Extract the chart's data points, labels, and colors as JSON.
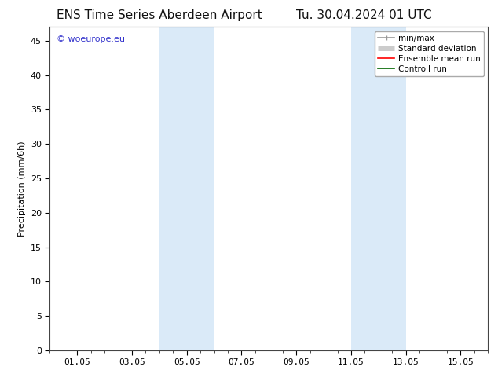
{
  "title_left": "ENS Time Series Aberdeen Airport",
  "title_right": "Tu. 30.04.2024 01 UTC",
  "ylabel": "Precipitation (mm/6h)",
  "ylim": [
    0,
    47
  ],
  "yticks": [
    0,
    5,
    10,
    15,
    20,
    25,
    30,
    35,
    40,
    45
  ],
  "xlim": [
    0.0,
    16.0
  ],
  "xtick_labels": [
    "01.05",
    "03.05",
    "05.05",
    "07.05",
    "09.05",
    "11.05",
    "13.05",
    "15.05"
  ],
  "xtick_positions": [
    1,
    3,
    5,
    7,
    9,
    11,
    13,
    15
  ],
  "shaded_bands": [
    {
      "x_start": 4.0,
      "x_end": 6.0
    },
    {
      "x_start": 11.0,
      "x_end": 13.0
    }
  ],
  "shade_color": "#daeaf8",
  "bg_color": "#ffffff",
  "watermark_text": "© woeurope.eu",
  "watermark_color": "#3333cc",
  "legend_entries": [
    {
      "label": "min/max",
      "color": "#999999",
      "lw": 1.2
    },
    {
      "label": "Standard deviation",
      "color": "#cccccc",
      "lw": 5
    },
    {
      "label": "Ensemble mean run",
      "color": "#ff0000",
      "lw": 1.2
    },
    {
      "label": "Controll run",
      "color": "#006600",
      "lw": 1.2
    }
  ],
  "title_fontsize": 11,
  "tick_fontsize": 8,
  "legend_fontsize": 7.5,
  "ylabel_fontsize": 8,
  "watermark_fontsize": 8
}
